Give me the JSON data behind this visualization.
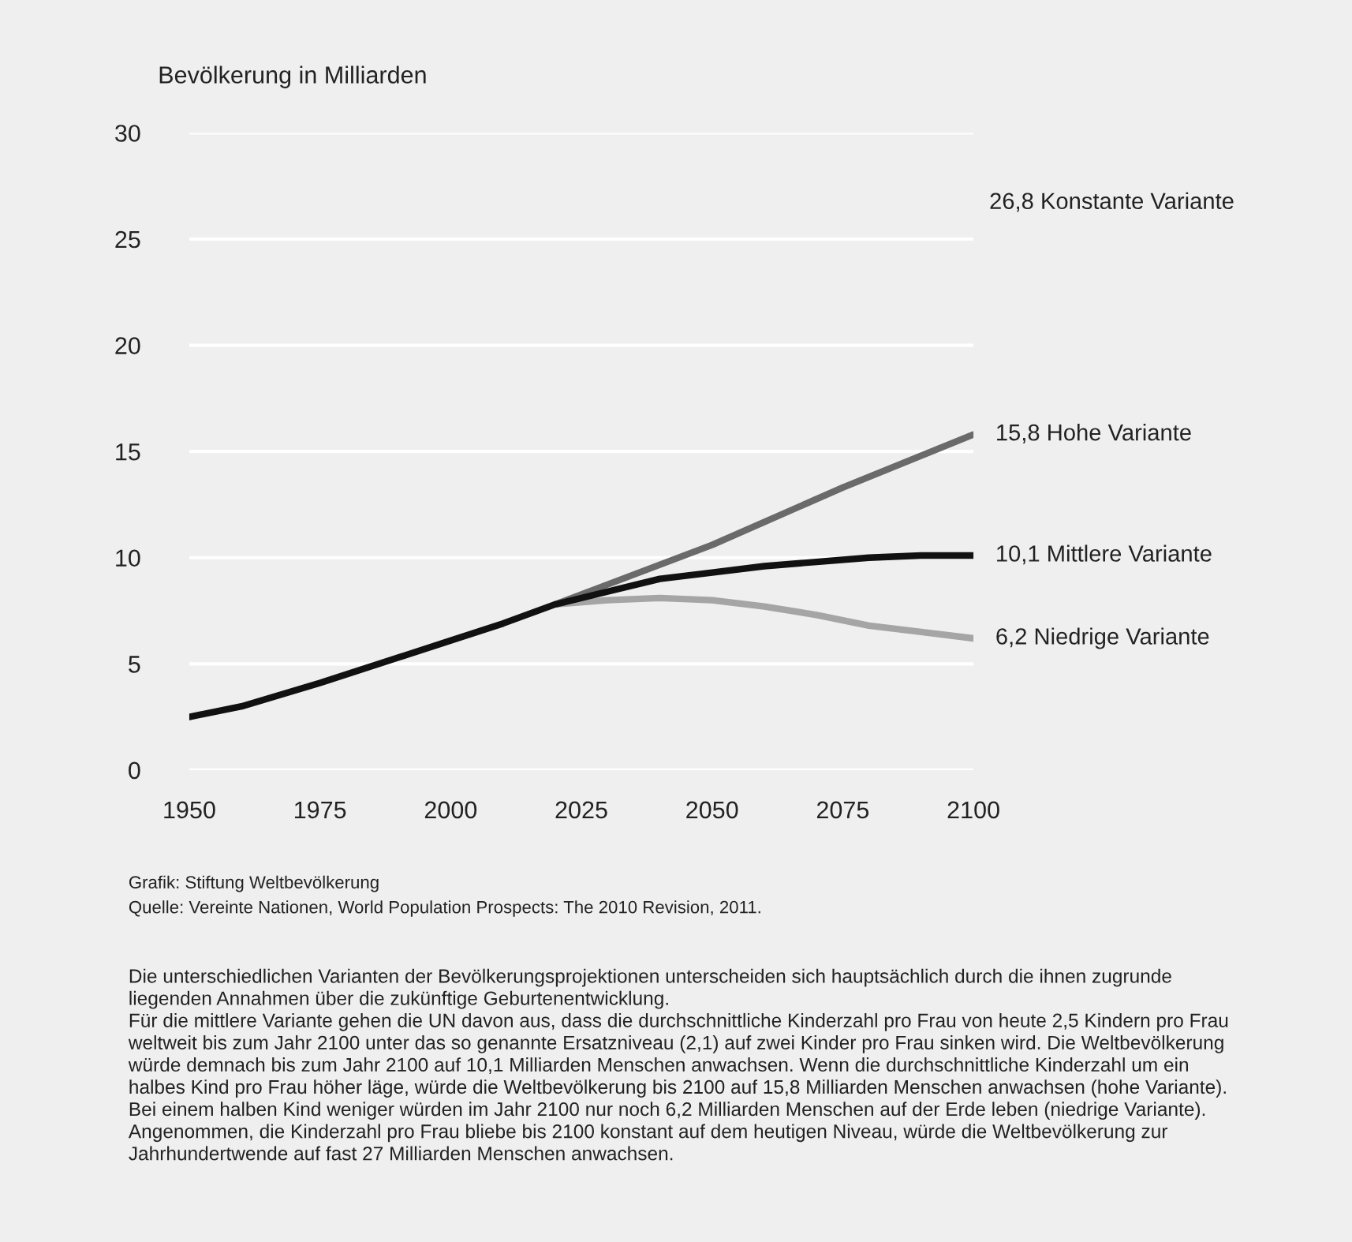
{
  "chart_data": {
    "type": "line",
    "ylabel": "Bevölkerung in Milliarden",
    "xlim": [
      1950,
      2100
    ],
    "xticks": [
      1950,
      1975,
      2000,
      2025,
      2050,
      2075,
      2100
    ],
    "ylim": [
      0,
      30
    ],
    "yticks": [
      0,
      5,
      10,
      15,
      20,
      25,
      30
    ],
    "grid": "y",
    "series": [
      {
        "name": "6,2 Niedrige Variante",
        "color": "#a5a5a5",
        "x": [
          2020,
          2030,
          2040,
          2050,
          2060,
          2070,
          2080,
          2090,
          2100
        ],
        "values": [
          7.8,
          8.0,
          8.1,
          8.0,
          7.7,
          7.3,
          6.8,
          6.5,
          6.2
        ]
      },
      {
        "name": "15,8 Hohe Variante",
        "color": "#6a6a6a",
        "x": [
          2020,
          2050,
          2075,
          2100
        ],
        "values": [
          7.8,
          10.6,
          13.3,
          15.8
        ]
      },
      {
        "name": "10,1 Mittlere Variante",
        "color": "#111111",
        "x": [
          1950,
          1960,
          1975,
          2000,
          2010,
          2020,
          2030,
          2040,
          2050,
          2060,
          2070,
          2080,
          2090,
          2100
        ],
        "values": [
          2.5,
          3.0,
          4.1,
          6.1,
          6.9,
          7.8,
          8.4,
          9.0,
          9.3,
          9.6,
          9.8,
          10.0,
          10.1,
          10.1
        ]
      }
    ],
    "annotations": [
      "26,8 Konstante Variante",
      "Grafik: Stiftung Weltbevölkerung",
      "Quelle: Vereinte Nationen, World Population Prospects: The 2010 Revision, 2011.",
      "Die unterschiedlichen Varianten der Bevölkerungsprojektionen unterscheiden sich hauptsächlich durch die ihnen zugrunde\nliegenden Annahmen über die zukünftige Geburtenentwicklung.\nFür die mittlere Variante gehen die UN davon aus, dass die durchschnittliche Kinderzahl pro Frau von heute 2,5 Kindern pro Frau\nweltweit bis zum Jahr 2100 unter das so genannte Ersatzniveau (2,1) auf zwei Kinder pro Frau sinken wird. Die Weltbevölkerung\nwürde demnach bis zum Jahr 2100 auf 10,1 Milliarden Menschen anwachsen. Wenn die durchschnittliche Kinderzahl um ein\nhalbes Kind pro Frau höher läge, würde die Weltbevölkerung bis 2100 auf 15,8 Milliarden Menschen anwachsen (hohe Variante).\nBei einem halben Kind weniger würden im Jahr 2100 nur noch 6,2 Milliarden Menschen auf der Erde leben (niedrige Variante).\nAngenommen, die Kinderzahl pro Frau bliebe bis 2100 konstant auf dem heutigen Niveau, würde die Weltbevölkerung zur\nJahrhundertwende auf fast 27 Milliarden Menschen anwachsen."
    ]
  }
}
